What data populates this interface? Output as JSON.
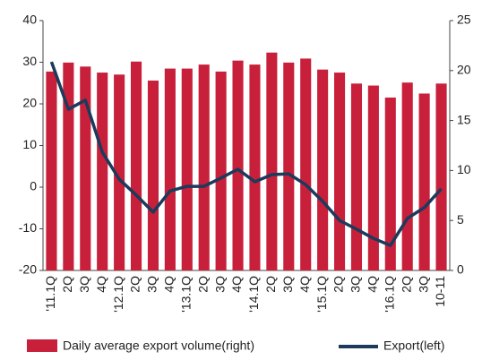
{
  "chart_data": {
    "type": "bar-line",
    "categories": [
      "'11.1Q",
      "2Q",
      "3Q",
      "4Q",
      "'12.1Q",
      "2Q",
      "3Q",
      "4Q",
      "'13.1Q",
      "2Q",
      "3Q",
      "4Q",
      "'14.1Q",
      "2Q",
      "3Q",
      "4Q",
      "'15.1Q",
      "2Q",
      "3Q",
      "4Q",
      "'16.1Q",
      "2Q",
      "3Q",
      "10-11"
    ],
    "series": [
      {
        "name": "Daily average export volume(right)",
        "type": "bar",
        "axis": "y2",
        "color": "#c8203a",
        "values": [
          19.9,
          20.8,
          20.4,
          19.8,
          19.6,
          20.9,
          19.0,
          20.2,
          20.2,
          20.6,
          19.9,
          21.0,
          20.6,
          21.8,
          20.8,
          21.2,
          20.1,
          19.8,
          18.7,
          18.5,
          17.3,
          18.8,
          17.7,
          18.7
        ]
      },
      {
        "name": "Export(left)",
        "type": "line",
        "axis": "y",
        "color": "#1b3a5c",
        "values": [
          30.1,
          18.7,
          20.9,
          8.4,
          1.9,
          -1.9,
          -6.0,
          -0.9,
          0.2,
          0.2,
          2.2,
          4.3,
          1.3,
          3.0,
          3.2,
          0.6,
          -3.4,
          -8.0,
          -10.1,
          -12.3,
          -14.0,
          -7.5,
          -4.9,
          -0.4
        ]
      }
    ],
    "ylim": [
      -20,
      40
    ],
    "yticks": [
      -20,
      -10,
      0,
      10,
      20,
      30,
      40
    ],
    "y2lim": [
      0,
      25
    ],
    "y2ticks": [
      0,
      5,
      10,
      15,
      20,
      25
    ]
  }
}
